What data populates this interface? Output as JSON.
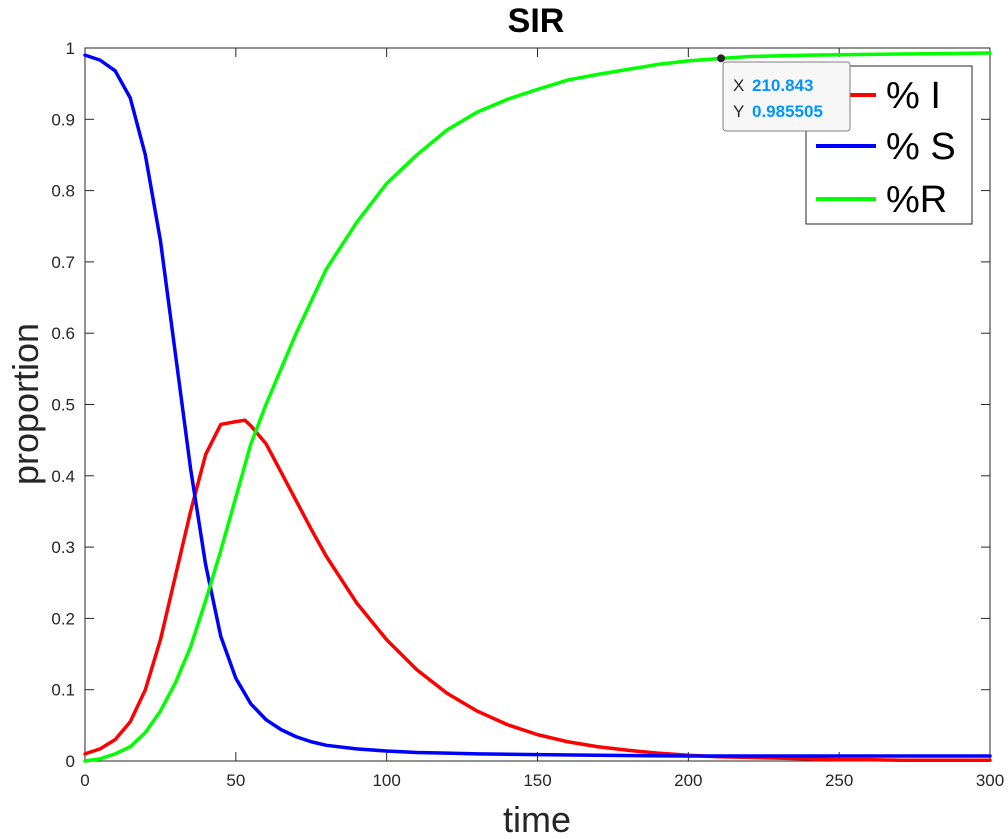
{
  "chart_data": {
    "type": "line",
    "title": "SIR",
    "xlabel": "time",
    "ylabel": "proportion",
    "xlim": [
      0,
      300
    ],
    "ylim": [
      0,
      1
    ],
    "xticks": [
      "0",
      "50",
      "100",
      "150",
      "200",
      "250",
      "300"
    ],
    "yticks": [
      "0",
      "0.1",
      "0.2",
      "0.3",
      "0.4",
      "0.5",
      "0.6",
      "0.7",
      "0.8",
      "0.9",
      "1"
    ],
    "grid": false,
    "legend_position": "top-right",
    "series": [
      {
        "name": "% I",
        "color": "#ff0000",
        "x": [
          0,
          5,
          10,
          15,
          20,
          25,
          30,
          35,
          40,
          45,
          50,
          53,
          55,
          60,
          65,
          70,
          75,
          80,
          90,
          100,
          110,
          120,
          130,
          140,
          150,
          160,
          170,
          180,
          190,
          200,
          210,
          220,
          230,
          240,
          250,
          260,
          270,
          280,
          290,
          300
        ],
        "y": [
          0.01,
          0.017,
          0.03,
          0.055,
          0.1,
          0.17,
          0.26,
          0.35,
          0.43,
          0.472,
          0.476,
          0.478,
          0.47,
          0.445,
          0.405,
          0.365,
          0.325,
          0.287,
          0.222,
          0.17,
          0.128,
          0.095,
          0.07,
          0.051,
          0.037,
          0.027,
          0.02,
          0.015,
          0.011,
          0.008,
          0.006,
          0.005,
          0.004,
          0.003,
          0.002,
          0.002,
          0.001,
          0.001,
          0.001,
          0.001
        ]
      },
      {
        "name": "% S",
        "color": "#0000ff",
        "x": [
          0,
          5,
          10,
          15,
          20,
          25,
          30,
          35,
          40,
          45,
          50,
          55,
          60,
          65,
          70,
          75,
          80,
          90,
          100,
          110,
          120,
          130,
          150,
          170,
          200,
          250,
          300
        ],
        "y": [
          0.99,
          0.983,
          0.968,
          0.93,
          0.85,
          0.73,
          0.57,
          0.41,
          0.275,
          0.175,
          0.116,
          0.08,
          0.058,
          0.044,
          0.034,
          0.027,
          0.022,
          0.017,
          0.014,
          0.012,
          0.011,
          0.01,
          0.009,
          0.008,
          0.007,
          0.007,
          0.007
        ]
      },
      {
        "name": "%R",
        "color": "#00ff00",
        "x": [
          0,
          5,
          10,
          15,
          20,
          25,
          30,
          35,
          40,
          45,
          50,
          55,
          60,
          65,
          70,
          75,
          80,
          90,
          100,
          110,
          120,
          130,
          140,
          150,
          160,
          170,
          180,
          190,
          200,
          210.843,
          220,
          240,
          260,
          280,
          300
        ],
        "y": [
          0,
          0.003,
          0.01,
          0.02,
          0.04,
          0.07,
          0.11,
          0.16,
          0.225,
          0.295,
          0.37,
          0.445,
          0.5,
          0.55,
          0.6,
          0.645,
          0.69,
          0.755,
          0.81,
          0.85,
          0.885,
          0.91,
          0.928,
          0.942,
          0.955,
          0.963,
          0.97,
          0.977,
          0.982,
          0.985505,
          0.988,
          0.99,
          0.991,
          0.992,
          0.993
        ]
      }
    ],
    "datatip": {
      "x_label": "X",
      "x_value": "210.843",
      "y_label": "Y",
      "y_value": "0.985505",
      "value_color": "#0096ff",
      "point": [
        210.843,
        0.985505
      ]
    }
  }
}
